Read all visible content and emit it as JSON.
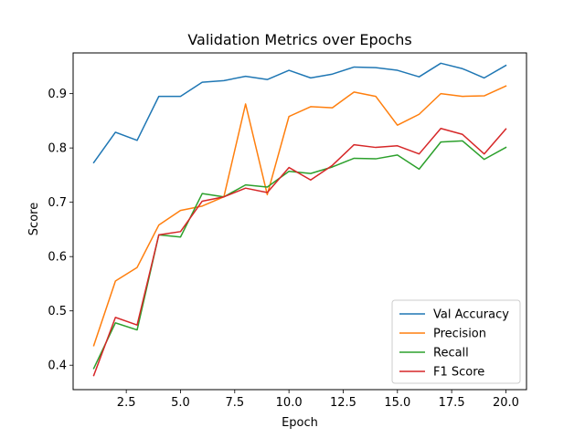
{
  "chart_data": {
    "type": "line",
    "title": "Validation Metrics over Epochs",
    "xlabel": "Epoch",
    "ylabel": "Score",
    "xlim": [
      0.05,
      20.95
    ],
    "ylim": [
      0.355,
      0.975
    ],
    "xticks": [
      2.5,
      5.0,
      7.5,
      10.0,
      12.5,
      15.0,
      17.5,
      20.0
    ],
    "xtick_labels": [
      "2.5",
      "5.0",
      "7.5",
      "10.0",
      "12.5",
      "15.0",
      "17.5",
      "20.0"
    ],
    "yticks": [
      0.4,
      0.5,
      0.6,
      0.7,
      0.8,
      0.9
    ],
    "ytick_labels": [
      "0.4",
      "0.5",
      "0.6",
      "0.7",
      "0.8",
      "0.9"
    ],
    "grid": false,
    "legend_position": "lower-right",
    "x": [
      1,
      2,
      3,
      4,
      5,
      6,
      7,
      8,
      9,
      10,
      11,
      12,
      13,
      14,
      15,
      16,
      17,
      18,
      19,
      20
    ],
    "series": [
      {
        "name": "Val Accuracy",
        "color": "#1f77b4",
        "values": [
          0.773,
          0.829,
          0.814,
          0.895,
          0.895,
          0.921,
          0.924,
          0.932,
          0.926,
          0.943,
          0.929,
          0.936,
          0.949,
          0.948,
          0.943,
          0.931,
          0.956,
          0.946,
          0.929,
          0.952
        ]
      },
      {
        "name": "Precision",
        "color": "#ff7f0e",
        "values": [
          0.436,
          0.555,
          0.58,
          0.658,
          0.685,
          0.693,
          0.71,
          0.881,
          0.714,
          0.858,
          0.876,
          0.874,
          0.903,
          0.895,
          0.842,
          0.862,
          0.9,
          0.895,
          0.896,
          0.914
        ]
      },
      {
        "name": "Recall",
        "color": "#2ca02c",
        "values": [
          0.394,
          0.478,
          0.465,
          0.64,
          0.636,
          0.716,
          0.71,
          0.732,
          0.728,
          0.757,
          0.753,
          0.765,
          0.781,
          0.78,
          0.787,
          0.761,
          0.811,
          0.813,
          0.779,
          0.801
        ]
      },
      {
        "name": "F1 Score",
        "color": "#d62728",
        "values": [
          0.381,
          0.488,
          0.474,
          0.64,
          0.646,
          0.702,
          0.71,
          0.726,
          0.718,
          0.764,
          0.741,
          0.768,
          0.806,
          0.801,
          0.804,
          0.789,
          0.836,
          0.825,
          0.789,
          0.835
        ]
      }
    ]
  }
}
